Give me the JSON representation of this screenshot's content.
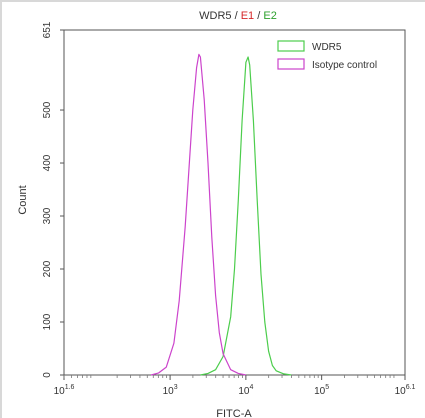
{
  "chart_data": {
    "type": "line",
    "title_parts": [
      {
        "text": "WDR5",
        "color": "#333333"
      },
      {
        "text": " / ",
        "color": "#333333"
      },
      {
        "text": "E1",
        "color": "#d62728"
      },
      {
        "text": " / ",
        "color": "#333333"
      },
      {
        "text": "E2",
        "color": "#2ca02c"
      }
    ],
    "xlabel": "FITC-A",
    "ylabel": "Count",
    "x_scale": "log",
    "xlim": [
      1.6,
      6.1
    ],
    "ylim": [
      0,
      651
    ],
    "x_ticks": [
      {
        "value": 1.6,
        "base": "10",
        "exp": "1.6"
      },
      {
        "value": 3,
        "base": "10",
        "exp": "3"
      },
      {
        "value": 4,
        "base": "10",
        "exp": "4"
      },
      {
        "value": 5,
        "base": "10",
        "exp": "5"
      },
      {
        "value": 6.1,
        "base": "10",
        "exp": "6.1"
      }
    ],
    "y_ticks": [
      "0",
      "100",
      "200",
      "300",
      "400",
      "500",
      "651"
    ],
    "legend_position": "top-right",
    "series": [
      {
        "name": "WDR5",
        "color": "#4ccd4c",
        "log_x": [
          3.4,
          3.5,
          3.6,
          3.7,
          3.8,
          3.85,
          3.9,
          3.95,
          4.0,
          4.03,
          4.05,
          4.1,
          4.15,
          4.2,
          4.25,
          4.3,
          4.35,
          4.4,
          4.5,
          4.6
        ],
        "count": [
          0,
          3,
          10,
          35,
          110,
          200,
          330,
          480,
          590,
          600,
          585,
          480,
          330,
          190,
          100,
          45,
          18,
          8,
          2,
          0
        ]
      },
      {
        "name": "Isotype control",
        "color": "#cc44cc",
        "log_x": [
          2.75,
          2.85,
          2.95,
          3.05,
          3.12,
          3.2,
          3.25,
          3.3,
          3.35,
          3.38,
          3.4,
          3.45,
          3.5,
          3.55,
          3.6,
          3.65,
          3.7,
          3.8,
          3.9,
          4.0
        ],
        "count": [
          0,
          4,
          15,
          60,
          140,
          280,
          390,
          500,
          580,
          605,
          600,
          520,
          400,
          260,
          150,
          80,
          40,
          10,
          3,
          0
        ]
      }
    ]
  }
}
